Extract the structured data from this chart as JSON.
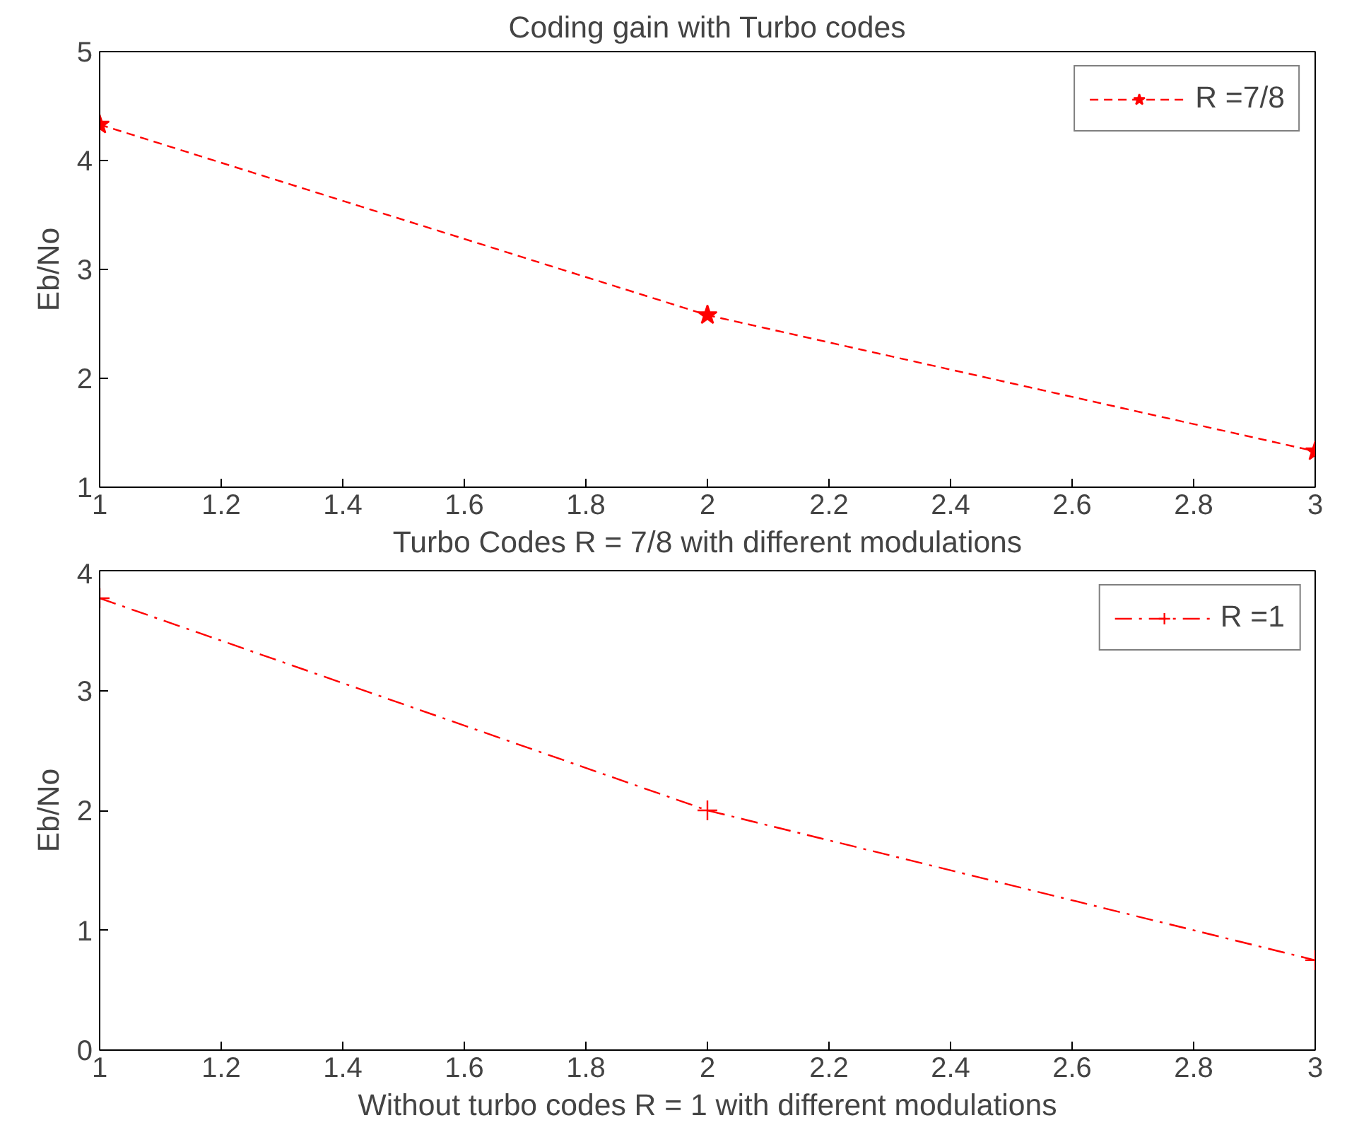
{
  "chart_data": [
    {
      "type": "line",
      "title": "Coding gain with Turbo codes",
      "xlabel": "Turbo Codes R = 7/8 with different modulations",
      "ylabel": "Eb/No",
      "x": [
        1,
        2,
        3
      ],
      "xlim": [
        1,
        3
      ],
      "xticks": [
        1,
        1.2,
        1.4,
        1.6,
        1.8,
        2,
        2.2,
        2.4,
        2.6,
        2.8,
        3
      ],
      "ylim": [
        1,
        5
      ],
      "yticks": [
        1,
        2,
        3,
        4,
        5
      ],
      "series": [
        {
          "name": "R =7/8",
          "color": "#ff0000",
          "values": [
            4.33,
            2.58,
            1.33
          ],
          "marker": "star",
          "line_style": "dashed"
        }
      ],
      "legend": "top right",
      "grid": false
    },
    {
      "type": "line",
      "xlabel": "Without turbo codes R = 1 with different modulations",
      "ylabel": "Eb/No",
      "x": [
        1,
        2,
        3
      ],
      "xlim": [
        1,
        3
      ],
      "xticks": [
        1,
        1.2,
        1.4,
        1.6,
        1.8,
        2,
        2.2,
        2.4,
        2.6,
        2.8,
        3
      ],
      "ylim": [
        0,
        4
      ],
      "yticks": [
        0,
        1,
        2,
        3,
        4
      ],
      "series": [
        {
          "name": "R =1",
          "color": "#ff0000",
          "values": [
            3.77,
            2.0,
            0.75
          ],
          "marker": "cross",
          "line_style": "dashdot"
        }
      ],
      "legend": "top right",
      "grid": false
    }
  ]
}
